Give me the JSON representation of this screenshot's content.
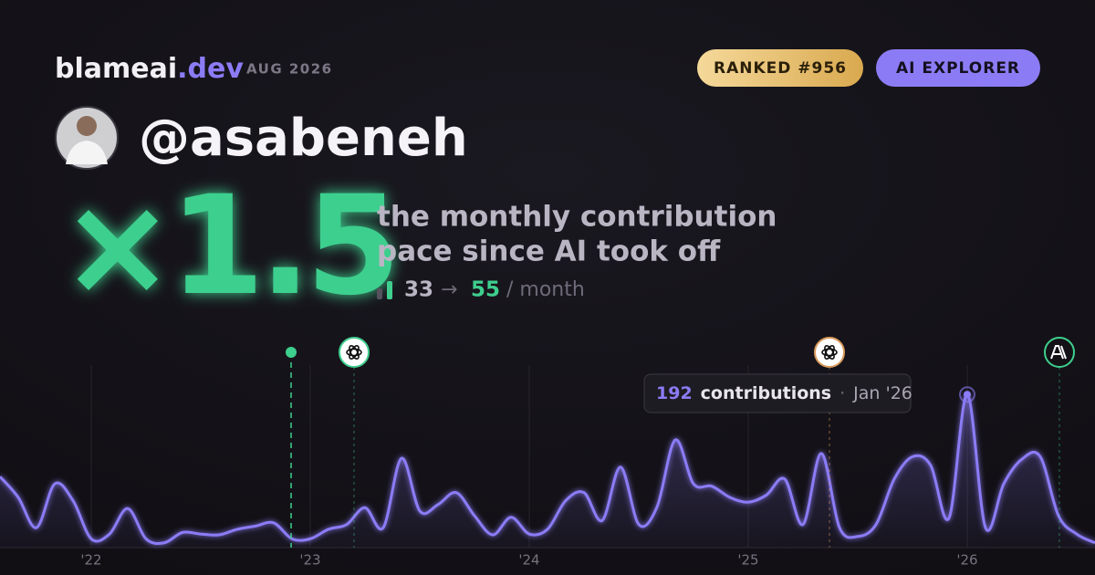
{
  "brand": {
    "name": "blameai",
    "tld": ".dev"
  },
  "date": "AUG 2026",
  "badges": [
    "RANKED #956",
    "AI EXPLORER"
  ],
  "handle": "@asabeneh",
  "multiplier": "×1.5",
  "description": [
    "the monthly contribution",
    "pace since AI took off"
  ],
  "pace": {
    "before": 33,
    "arrow": "→",
    "after": 55,
    "unit": "/ month"
  },
  "tooltip": {
    "label": "contributions",
    "date": "Jan '26"
  },
  "chart_data": {
    "type": "line",
    "categories": [
      null,
      null,
      null,
      null,
      null,
      "'22",
      null,
      null,
      null,
      null,
      null,
      null,
      null,
      null,
      null,
      null,
      null,
      "'23",
      null,
      null,
      null,
      null,
      null,
      null,
      null,
      null,
      null,
      null,
      null,
      "'24",
      null,
      null,
      null,
      null,
      null,
      null,
      null,
      null,
      null,
      null,
      null,
      "'25",
      null,
      null,
      null,
      null,
      null,
      null,
      null,
      null,
      null,
      null,
      null,
      "'26",
      null,
      null,
      null,
      null,
      null,
      null,
      null
    ],
    "series": [
      {
        "color": "#8b7cf6",
        "values": [
          89,
          63,
          25,
          80,
          59,
          11,
          17,
          49,
          11,
          6,
          19,
          17,
          16,
          23,
          27,
          31,
          11,
          11,
          23,
          29,
          50,
          25,
          112,
          46,
          54,
          69,
          40,
          16,
          38,
          17,
          23,
          59,
          69,
          34,
          101,
          29,
          51,
          135,
          80,
          77,
          63,
          57,
          66,
          86,
          29,
          118,
          25,
          14,
          29,
          86,
          114,
          103,
          37,
          192,
          25,
          80,
          111,
          114,
          40,
          17,
          6
        ]
      }
    ],
    "ylim": [
      0,
      230
    ],
    "grid": true
  }
}
